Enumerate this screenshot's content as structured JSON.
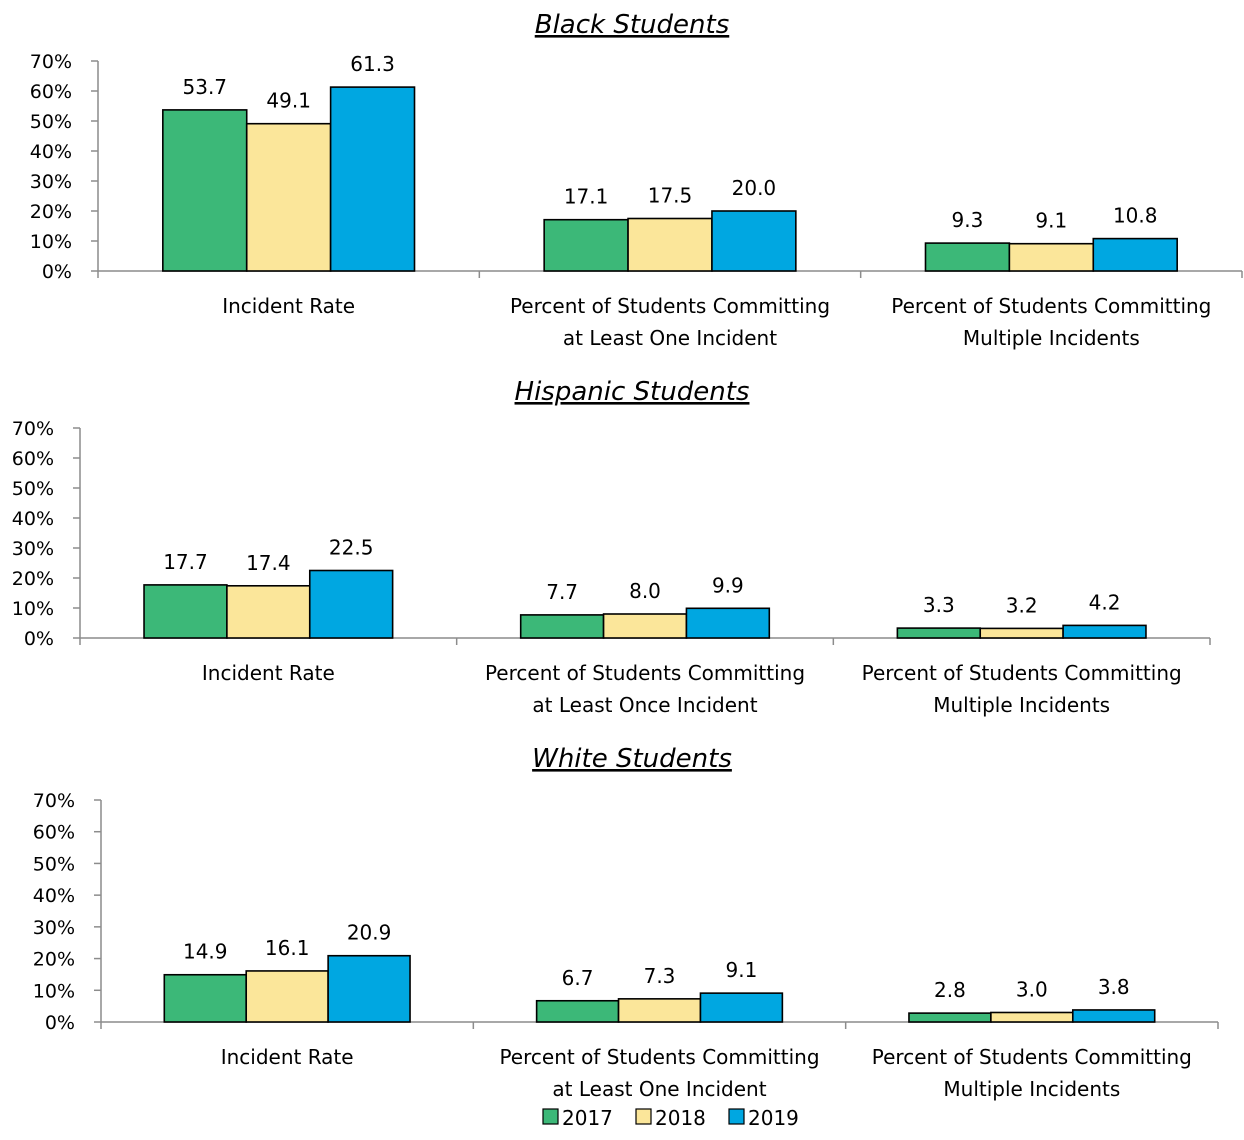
{
  "colors": {
    "2017": "#3cb878",
    "2018": "#fbe69a",
    "2019": "#00a7e1"
  },
  "legend": [
    {
      "name": "2017",
      "color": "#3cb878"
    },
    {
      "name": "2018",
      "color": "#fbe69a"
    },
    {
      "name": "2019",
      "color": "#00a7e1"
    }
  ],
  "chart_data": [
    {
      "type": "bar",
      "title": "Black Students",
      "categories": [
        [
          "Incident Rate"
        ],
        [
          "Percent of Students Committing",
          "at Least One Incident"
        ],
        [
          "Percent of Students Committing",
          "Multiple Incidents"
        ]
      ],
      "series": [
        {
          "name": "2017",
          "values": [
            53.7,
            17.1,
            9.3
          ]
        },
        {
          "name": "2018",
          "values": [
            49.1,
            17.5,
            9.1
          ]
        },
        {
          "name": "2019",
          "values": [
            61.3,
            20.0,
            10.8
          ]
        }
      ],
      "data_labels": [
        [
          "53.7",
          "17.1",
          "9.3"
        ],
        [
          "49.1",
          "17.5",
          "9.1"
        ],
        [
          "61.3",
          "20.0",
          "10.8"
        ]
      ],
      "yticks": [
        "0%",
        "10%",
        "20%",
        "30%",
        "40%",
        "50%",
        "60%",
        "70%"
      ],
      "ylim": [
        0,
        70
      ],
      "grid": false,
      "legend": "none"
    },
    {
      "type": "bar",
      "title": "Hispanic Students",
      "categories": [
        [
          "Incident Rate"
        ],
        [
          "Percent of Students Committing",
          "at Least Once Incident"
        ],
        [
          "Percent of Students Committing",
          "Multiple Incidents"
        ]
      ],
      "series": [
        {
          "name": "2017",
          "values": [
            17.7,
            7.7,
            3.3
          ]
        },
        {
          "name": "2018",
          "values": [
            17.4,
            8.0,
            3.2
          ]
        },
        {
          "name": "2019",
          "values": [
            22.5,
            9.9,
            4.2
          ]
        }
      ],
      "data_labels": [
        [
          "17.7",
          "7.7",
          "3.3"
        ],
        [
          "17.4",
          "8.0",
          "3.2"
        ],
        [
          "22.5",
          "9.9",
          "4.2"
        ]
      ],
      "yticks": [
        "0%",
        "10%",
        "20%",
        "30%",
        "40%",
        "50%",
        "60%",
        "70%"
      ],
      "ylim": [
        0,
        70
      ],
      "grid": false,
      "legend": "none"
    },
    {
      "type": "bar",
      "title": "White Students",
      "categories": [
        [
          "Incident Rate"
        ],
        [
          "Percent of Students Committing",
          "at Least One Incident"
        ],
        [
          "Percent of Students Committing",
          "Multiple Incidents"
        ]
      ],
      "series": [
        {
          "name": "2017",
          "values": [
            14.9,
            6.7,
            2.8
          ]
        },
        {
          "name": "2018",
          "values": [
            16.1,
            7.3,
            3.0
          ]
        },
        {
          "name": "2019",
          "values": [
            20.9,
            9.1,
            3.8
          ]
        }
      ],
      "data_labels": [
        [
          "14.9",
          "6.7",
          "2.8"
        ],
        [
          "16.1",
          "7.3",
          "3.0"
        ],
        [
          "20.9",
          "9.1",
          "3.8"
        ]
      ],
      "yticks": [
        "0%",
        "10%",
        "20%",
        "30%",
        "40%",
        "50%",
        "60%",
        "70%"
      ],
      "ylim": [
        0,
        70
      ],
      "grid": false,
      "legend": "bottom-center"
    }
  ]
}
